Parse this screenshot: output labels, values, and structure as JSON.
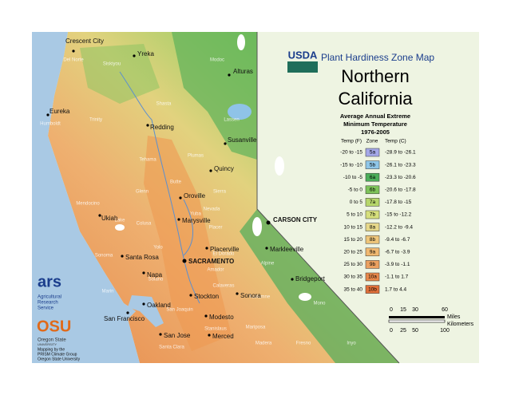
{
  "header": {
    "logo": "USDA",
    "title": "Plant Hardiness Zone Map",
    "region": [
      "Northern",
      "California"
    ],
    "subtitle": [
      "Average Annual Extreme",
      "Minimum Temperature",
      "1976-2005"
    ]
  },
  "legend": {
    "columns": [
      "Temp (F)",
      "Zone",
      "Temp (C)"
    ],
    "rows": [
      {
        "f": "-20 to -15",
        "zone": "5a",
        "c": "-28.9 to -26.1",
        "color": "#a4a8e8"
      },
      {
        "f": "-15 to -10",
        "zone": "5b",
        "c": "-26.1 to -23.3",
        "color": "#8fc6e8"
      },
      {
        "f": "-10 to -5",
        "zone": "6a",
        "c": "-23.3 to -20.6",
        "color": "#4cae5a"
      },
      {
        "f": "-5 to 0",
        "zone": "6b",
        "c": "-20.6 to -17.8",
        "color": "#7ec35a"
      },
      {
        "f": "0 to 5",
        "zone": "7a",
        "c": "-17.8 to -15",
        "color": "#b6d66a"
      },
      {
        "f": "5 to 10",
        "zone": "7b",
        "c": "-15 to -12.2",
        "color": "#d6df7c"
      },
      {
        "f": "10 to 15",
        "zone": "8a",
        "c": "-12.2 to -9.4",
        "color": "#e6d88a"
      },
      {
        "f": "15 to 20",
        "zone": "8b",
        "c": "-9.4 to -6.7",
        "color": "#eec67a"
      },
      {
        "f": "20 to 25",
        "zone": "9a",
        "c": "-6.7 to -3.9",
        "color": "#f0b870"
      },
      {
        "f": "25 to 30",
        "zone": "9b",
        "c": "-3.9 to -1.1",
        "color": "#eaa060"
      },
      {
        "f": "30 to 35",
        "zone": "10a",
        "c": "-1.1 to 1.7",
        "color": "#e8884a"
      },
      {
        "f": "35 to 40",
        "zone": "10b",
        "c": "1.7 to 4.4",
        "color": "#e0703a"
      }
    ]
  },
  "scale": {
    "miles": [
      "0",
      "15",
      "30",
      "60"
    ],
    "miles_unit": "Miles",
    "km": [
      "0",
      "25",
      "50",
      "100"
    ],
    "km_unit": "Kilometers"
  },
  "cities": [
    "Crescent City",
    "Yreka",
    "Alturas",
    "Eureka",
    "Redding",
    "Susanville",
    "Quincy",
    "Oroville",
    "Ukiah",
    "Marysville",
    "CARSON CITY",
    "Placerville",
    "Santa Rosa",
    "SACRAMENTO",
    "Markleeville",
    "Napa",
    "Bridgeport",
    "Stockton",
    "Sonora",
    "Oakland",
    "San Francisco",
    "Modesto",
    "San Jose",
    "Merced"
  ],
  "counties": [
    "Del Norte",
    "Siskiyou",
    "Modoc",
    "Humboldt",
    "Trinity",
    "Shasta",
    "Lassen",
    "Tehama",
    "Plumas",
    "Glenn",
    "Butte",
    "Sierra",
    "Mendocino",
    "Lake",
    "Colusa",
    "Nevada",
    "Yuba",
    "Placer",
    "Sonoma",
    "Yolo",
    "El Dorado",
    "Alpine",
    "Marin",
    "Solano",
    "Amador",
    "Calaveras",
    "Tuolumne",
    "Mono",
    "San Joaquin",
    "Stanislaus",
    "Mariposa",
    "Santa Clara",
    "Madera",
    "Fresno",
    "Inyo"
  ],
  "credits": {
    "ars_logo": "ars",
    "ars": [
      "Agricultural",
      "Research",
      "Service"
    ],
    "osu_logo": "OSU",
    "osu": "Oregon State",
    "osu_sub": "UNIVERSITY",
    "mapping": [
      "Mapping by the",
      "PRISM Climate Group",
      "Oregon State University"
    ]
  }
}
